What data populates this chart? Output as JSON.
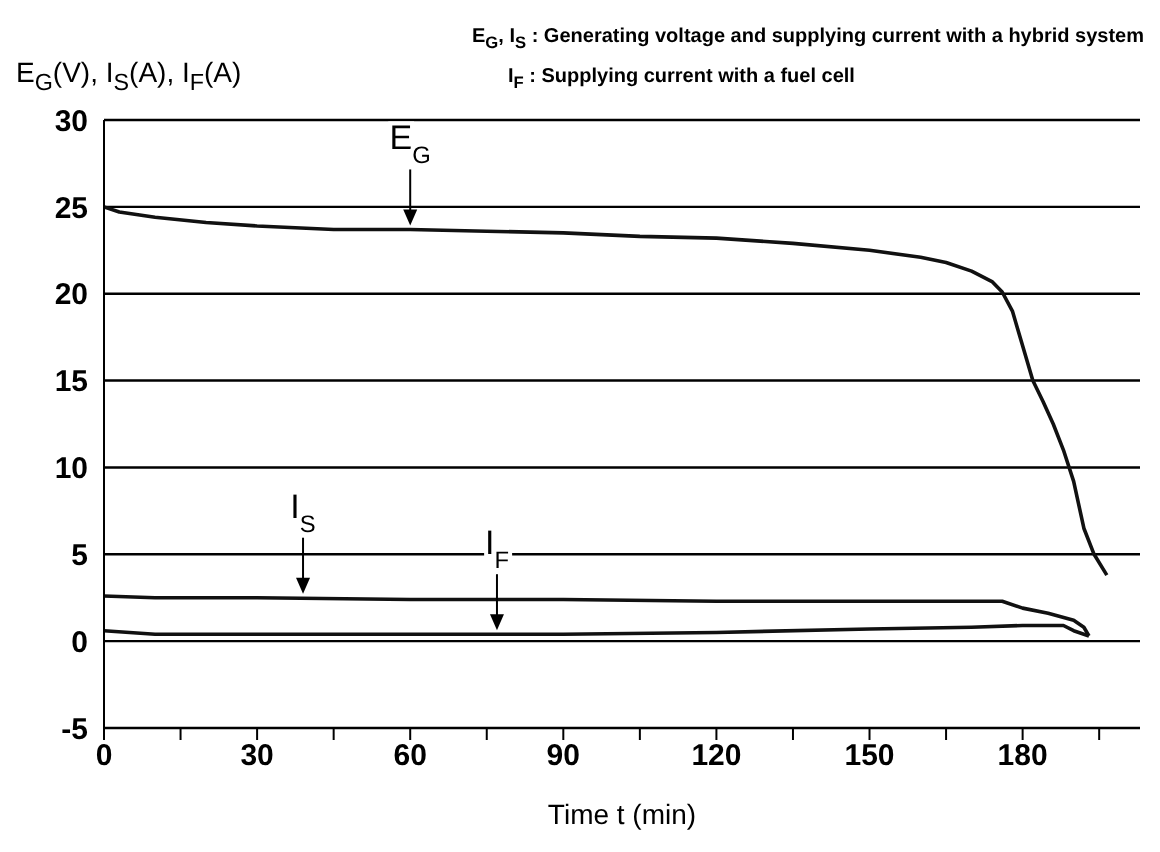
{
  "chart_data": {
    "type": "line",
    "ylabel": "E$_{G}$(V), I$_{S}$(A), I$_{F}$(A)",
    "xlabel": "Time t (min)",
    "xlim": [
      0,
      203
    ],
    "xticks": [
      0,
      {
        "value": 15,
        "label": null
      },
      30,
      {
        "value": 45,
        "label": null
      },
      60,
      {
        "value": 75,
        "label": null
      },
      90,
      {
        "value": 105,
        "label": null
      },
      120,
      {
        "value": 135,
        "label": null
      },
      150,
      {
        "value": 165,
        "label": null
      },
      180,
      {
        "value": 195,
        "label": null
      }
    ],
    "ylim": [
      -5,
      30
    ],
    "yticks": [
      -5,
      0,
      5,
      10,
      15,
      20,
      25,
      30
    ],
    "grid": "y",
    "marker": "none",
    "line_style": "solid",
    "series": [
      {
        "color": "#111111",
        "x": [
          0,
          3,
          10,
          20,
          30,
          45,
          60,
          75,
          90,
          105,
          120,
          135,
          150,
          160,
          165,
          170,
          174,
          176,
          178,
          180,
          182,
          184,
          186,
          188,
          190,
          192,
          194,
          196.5
        ],
        "values": [
          25,
          24.7,
          24.4,
          24.1,
          23.9,
          23.7,
          23.7,
          23.6,
          23.5,
          23.3,
          23.2,
          22.9,
          22.5,
          22.1,
          21.8,
          21.3,
          20.7,
          20.1,
          19,
          17,
          15,
          13.8,
          12.5,
          11,
          9.2,
          6.5,
          5,
          3.8
        ]
      },
      {
        "color": "#111111",
        "x": [
          0,
          10,
          30,
          60,
          90,
          120,
          150,
          170,
          176,
          180,
          185,
          190,
          192,
          193
        ],
        "values": [
          2.6,
          2.5,
          2.5,
          2.4,
          2.4,
          2.3,
          2.3,
          2.3,
          2.3,
          1.9,
          1.6,
          1.2,
          0.8,
          0.3
        ]
      },
      {
        "color": "#111111",
        "x": [
          0,
          5,
          10,
          30,
          60,
          90,
          120,
          150,
          170,
          180,
          188,
          190,
          193
        ],
        "values": [
          0.6,
          0.5,
          0.4,
          0.4,
          0.4,
          0.4,
          0.5,
          0.7,
          0.8,
          0.9,
          0.9,
          0.6,
          0.3
        ]
      }
    ],
    "annotations": [
      {
        "text": "E$_{G}$",
        "x": 60,
        "y": 23.7
      },
      {
        "text": "I$_{S}$",
        "x": 39,
        "y": 2.5
      },
      {
        "text": "I$_{F}$",
        "x": 77,
        "y": 0.4
      },
      "E$_{G}$, I$_{S}$ : Generating voltage and supplying current with a hybrid system",
      "I$_{F}$ : Supplying current with a fuel cell"
    ]
  }
}
